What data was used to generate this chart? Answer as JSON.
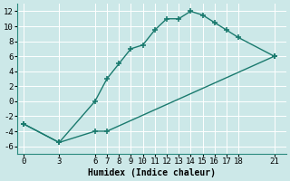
{
  "xlabel": "Humidex (Indice chaleur)",
  "line1_x": [
    0,
    3,
    6,
    7,
    8,
    9,
    10,
    11,
    12,
    13,
    14,
    15,
    16,
    17,
    18,
    21
  ],
  "line1_y": [
    -3,
    -5.5,
    0,
    3,
    5,
    7,
    7.5,
    9.5,
    11,
    11,
    12,
    11.5,
    10.5,
    9.5,
    8.5,
    6
  ],
  "line2_x": [
    0,
    3,
    6,
    7,
    21
  ],
  "line2_y": [
    -3,
    -5.5,
    -4,
    -4,
    6
  ],
  "color": "#1a7a6e",
  "bg_color": "#cce8e8",
  "grid_color": "#b0d8d8",
  "xlim": [
    -0.5,
    22
  ],
  "ylim": [
    -7,
    13
  ],
  "xticks": [
    0,
    3,
    6,
    7,
    8,
    9,
    10,
    11,
    12,
    13,
    14,
    15,
    16,
    17,
    18,
    21
  ],
  "yticks": [
    -6,
    -4,
    -2,
    0,
    2,
    4,
    6,
    8,
    10,
    12
  ],
  "marker": "+",
  "markersize": 4,
  "linewidth": 1.0,
  "label_fontsize": 7,
  "tick_fontsize": 6.5
}
